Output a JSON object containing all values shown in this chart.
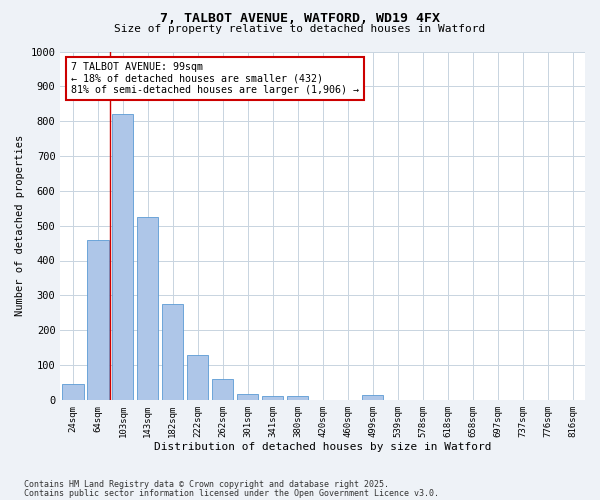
{
  "title": "7, TALBOT AVENUE, WATFORD, WD19 4FX",
  "subtitle": "Size of property relative to detached houses in Watford",
  "xlabel": "Distribution of detached houses by size in Watford",
  "ylabel": "Number of detached properties",
  "footnote1": "Contains HM Land Registry data © Crown copyright and database right 2025.",
  "footnote2": "Contains public sector information licensed under the Open Government Licence v3.0.",
  "categories": [
    "24sqm",
    "64sqm",
    "103sqm",
    "143sqm",
    "182sqm",
    "222sqm",
    "262sqm",
    "301sqm",
    "341sqm",
    "380sqm",
    "420sqm",
    "460sqm",
    "499sqm",
    "539sqm",
    "578sqm",
    "618sqm",
    "658sqm",
    "697sqm",
    "737sqm",
    "776sqm",
    "816sqm"
  ],
  "values": [
    45,
    460,
    820,
    525,
    275,
    130,
    60,
    18,
    12,
    12,
    0,
    0,
    15,
    0,
    0,
    0,
    0,
    0,
    0,
    0,
    0
  ],
  "bar_color": "#aec6e8",
  "bar_edge_color": "#5b9bd5",
  "property_line_color": "#cc0000",
  "annotation_text": "7 TALBOT AVENUE: 99sqm\n← 18% of detached houses are smaller (432)\n81% of semi-detached houses are larger (1,906) →",
  "annotation_box_color": "#cc0000",
  "ylim": [
    0,
    1000
  ],
  "yticks": [
    0,
    100,
    200,
    300,
    400,
    500,
    600,
    700,
    800,
    900,
    1000
  ],
  "bg_color": "#eef2f7",
  "plot_bg_color": "#ffffff",
  "grid_color": "#c8d4e0"
}
